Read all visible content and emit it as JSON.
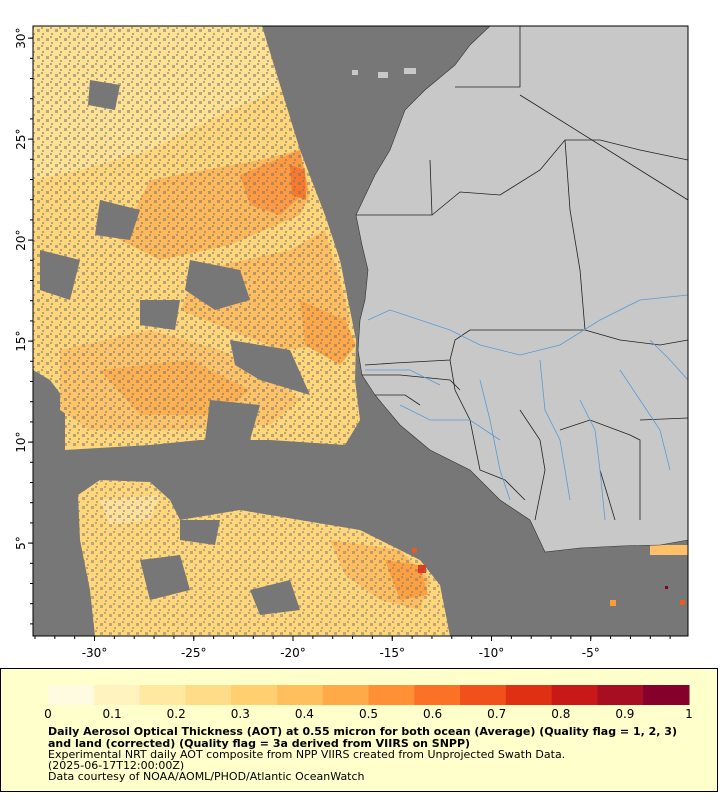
{
  "map": {
    "lat_labels": [
      {
        "lat": 30,
        "label": "30°"
      },
      {
        "lat": 25,
        "label": "25°"
      },
      {
        "lat": 20,
        "label": "20°"
      },
      {
        "lat": 15,
        "label": "15°"
      },
      {
        "lat": 10,
        "label": "10°"
      },
      {
        "lat": 5,
        "label": "5°"
      }
    ],
    "lon_labels": [
      {
        "lon": -30,
        "label": "-30°"
      },
      {
        "lon": -25,
        "label": "-25°"
      },
      {
        "lon": -20,
        "label": "-20°"
      },
      {
        "lon": -15,
        "label": "-15°"
      },
      {
        "lon": -10,
        "label": "-10°"
      },
      {
        "lon": -5,
        "label": "-5°"
      }
    ],
    "lon_range": [
      -33.1,
      -0.1
    ],
    "lat_range": [
      0.4,
      30.6
    ],
    "colors": {
      "nodata": "#777777",
      "land": "#c8c8c8",
      "border": "#222222",
      "river": "#5b9bd5"
    }
  },
  "legend": {
    "ticks": [
      "0",
      "0.1",
      "0.2",
      "0.3",
      "0.4",
      "0.5",
      "0.6",
      "0.7",
      "0.8",
      "0.9",
      "1"
    ],
    "scale_colors": [
      "#fffbe0",
      "#fff3c0",
      "#ffe9a0",
      "#ffdd88",
      "#ffcf70",
      "#ffbf5c",
      "#ffaa48",
      "#ff9036",
      "#fb7126",
      "#f2501a",
      "#e03014",
      "#c81818",
      "#a80e22",
      "#85002a"
    ],
    "title": "Daily Aerosol Optical Thickness (AOT) at 0.55 micron for both ocean (Average) (Quality flag = 1, 2, 3) and land (corrected) (Quality flag = 3a derived from VIIRS on SNPP)",
    "line1": "Experimental NRT daily AOT composite from NPP VIIRS created from Unprojected Swath Data.",
    "line2": "(2025-06-17T12:00:00Z)",
    "line3": "Data courtesy of NOAA/AOML/PHOD/Atlantic OceanWatch"
  }
}
